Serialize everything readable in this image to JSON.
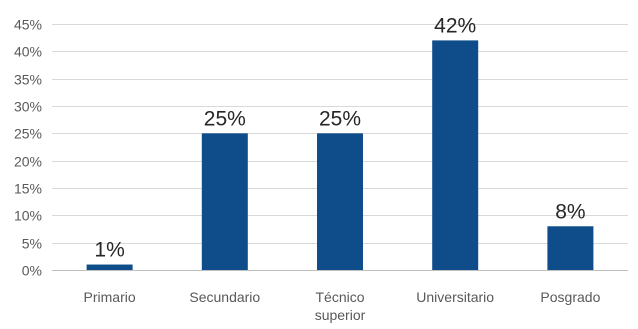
{
  "chart_data": {
    "type": "bar",
    "categories": [
      "Primario",
      "Secundario",
      "Técnico\nsuperior",
      "Universitario",
      "Posgrado"
    ],
    "values": [
      1,
      25,
      25,
      42,
      8
    ],
    "data_labels": [
      "1%",
      "25%",
      "25%",
      "42%",
      "8%"
    ],
    "title": "",
    "xlabel": "",
    "ylabel": "",
    "ylim": [
      0,
      45
    ],
    "yticks": [
      0,
      5,
      10,
      15,
      20,
      25,
      30,
      35,
      40,
      45
    ],
    "ytick_labels": [
      "0%",
      "5%",
      "10%",
      "15%",
      "20%",
      "25%",
      "30%",
      "35%",
      "40%",
      "45%"
    ],
    "grid": true,
    "legend": "none",
    "bar_color": "#0f4c8a"
  }
}
